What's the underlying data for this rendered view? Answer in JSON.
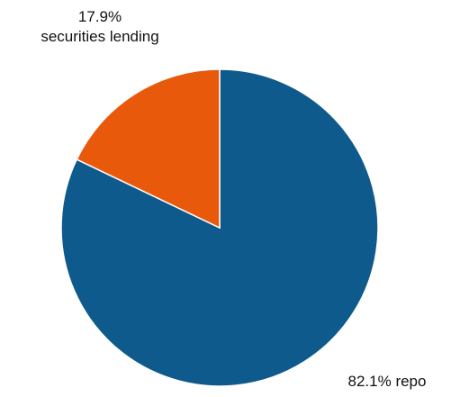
{
  "chart_data": {
    "type": "pie",
    "title": "",
    "slices": [
      {
        "label": "repo",
        "value": 82.1,
        "value_text": "82.1%",
        "color": "#0f5a8c"
      },
      {
        "label": "securities lending",
        "value": 17.9,
        "value_text": "17.9%",
        "color": "#e8590c"
      }
    ],
    "labels": {
      "repo": "82.1% repo",
      "lending_value": "17.9%",
      "lending_name": "securities lending"
    },
    "start_angle_deg": 0,
    "direction": "clockwise",
    "legend": "none"
  }
}
